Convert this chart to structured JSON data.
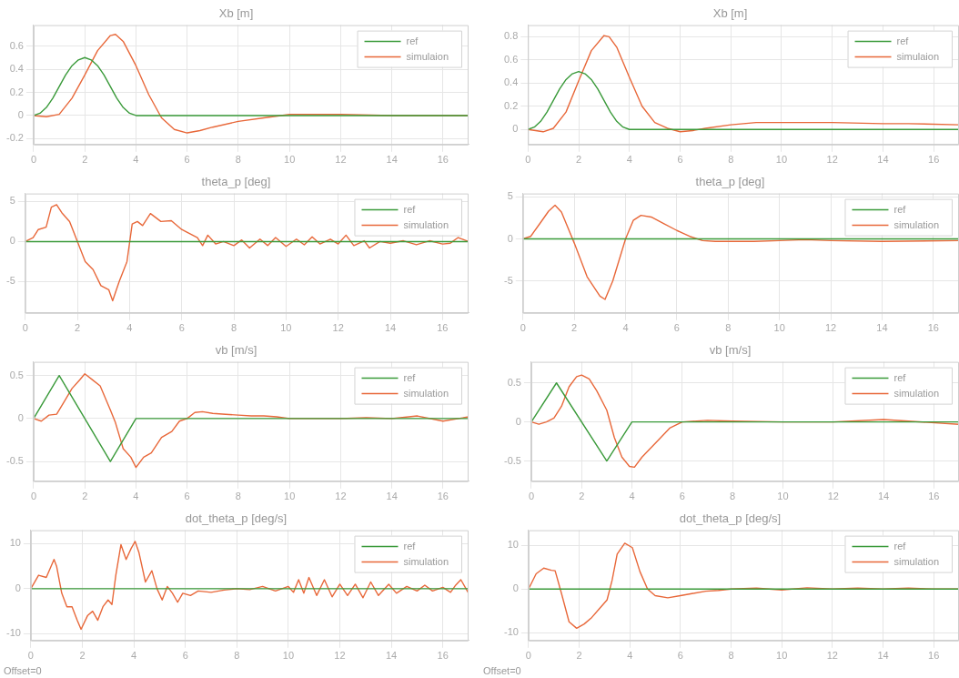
{
  "chart_data": [
    {
      "type": "line",
      "title": "Xb [m]",
      "xlim": [
        0,
        17
      ],
      "xticks": [
        0,
        2,
        4,
        6,
        8,
        10,
        12,
        14,
        16
      ],
      "ylim": [
        -0.25,
        0.78
      ],
      "yticks": [
        -0.2,
        0,
        0.2,
        0.4,
        0.6
      ],
      "grid": true,
      "legend": "top right",
      "series": [
        {
          "name": "ref",
          "color": "#3a9a3a",
          "x": [
            0,
            0.25,
            0.5,
            0.75,
            1,
            1.25,
            1.5,
            1.75,
            2,
            2.25,
            2.5,
            2.75,
            3,
            3.25,
            3.5,
            3.75,
            4,
            17
          ],
          "values": [
            0,
            0.02,
            0.07,
            0.15,
            0.25,
            0.35,
            0.43,
            0.48,
            0.5,
            0.48,
            0.43,
            0.35,
            0.25,
            0.15,
            0.07,
            0.02,
            0,
            0
          ]
        },
        {
          "name": "simulaion",
          "color": "#e8683a",
          "x": [
            0,
            0.5,
            1,
            1.5,
            2,
            2.5,
            3,
            3.2,
            3.5,
            4,
            4.5,
            5,
            5.5,
            6,
            6.5,
            7,
            8,
            9,
            10,
            12,
            14,
            17
          ],
          "values": [
            0,
            -0.01,
            0.01,
            0.15,
            0.35,
            0.56,
            0.69,
            0.7,
            0.64,
            0.43,
            0.18,
            -0.02,
            -0.12,
            -0.15,
            -0.13,
            -0.1,
            -0.05,
            -0.02,
            0.01,
            0.01,
            0,
            0
          ]
        }
      ]
    },
    {
      "type": "line",
      "title": "Xb [m]",
      "xlim": [
        0,
        17
      ],
      "xticks": [
        0,
        2,
        4,
        6,
        8,
        10,
        12,
        14,
        16
      ],
      "ylim": [
        -0.13,
        0.9
      ],
      "yticks": [
        0,
        0.2,
        0.4,
        0.6,
        0.8
      ],
      "grid": true,
      "legend": "top right",
      "series": [
        {
          "name": "ref",
          "color": "#3a9a3a",
          "x": [
            0,
            0.25,
            0.5,
            0.75,
            1,
            1.25,
            1.5,
            1.75,
            2,
            2.25,
            2.5,
            2.75,
            3,
            3.25,
            3.5,
            3.75,
            4,
            17
          ],
          "values": [
            0,
            0.02,
            0.07,
            0.15,
            0.25,
            0.35,
            0.43,
            0.48,
            0.5,
            0.48,
            0.43,
            0.35,
            0.25,
            0.15,
            0.07,
            0.02,
            0,
            0
          ]
        },
        {
          "name": "simulaion",
          "color": "#e8683a",
          "x": [
            0,
            0.6,
            1,
            1.5,
            2,
            2.5,
            3,
            3.2,
            3.5,
            4,
            4.5,
            5,
            5.5,
            6,
            6.5,
            7,
            8,
            9,
            10,
            12,
            14,
            15,
            17
          ],
          "values": [
            0,
            -0.02,
            0.01,
            0.15,
            0.42,
            0.68,
            0.81,
            0.8,
            0.71,
            0.45,
            0.2,
            0.06,
            0.01,
            -0.02,
            -0.01,
            0.01,
            0.04,
            0.06,
            0.06,
            0.06,
            0.05,
            0.05,
            0.04
          ]
        }
      ]
    },
    {
      "type": "line",
      "title": "theta_p [deg]",
      "xlim": [
        0,
        17
      ],
      "xticks": [
        0,
        2,
        4,
        6,
        8,
        10,
        12,
        14,
        16
      ],
      "ylim": [
        -8.9,
        6
      ],
      "yticks": [
        -5,
        0,
        5
      ],
      "grid": true,
      "legend": "top right",
      "series": [
        {
          "name": "ref",
          "color": "#3a9a3a",
          "x": [
            0,
            17
          ],
          "values": [
            0,
            0
          ]
        },
        {
          "name": "simulation",
          "color": "#e8683a",
          "x": [
            0,
            0.3,
            0.5,
            0.8,
            1,
            1.2,
            1.4,
            1.7,
            2,
            2.3,
            2.6,
            2.9,
            3.2,
            3.35,
            3.6,
            3.9,
            4.1,
            4.3,
            4.5,
            4.8,
            5.2,
            5.6,
            6,
            6.3,
            6.6,
            6.8,
            7,
            7.3,
            7.6,
            8,
            8.3,
            8.6,
            9,
            9.3,
            9.6,
            10,
            10.4,
            10.7,
            11,
            11.3,
            11.7,
            12,
            12.3,
            12.6,
            13,
            13.2,
            13.6,
            14,
            14.5,
            15,
            15.5,
            16,
            16.3,
            16.6,
            17
          ],
          "values": [
            0,
            0.5,
            1.5,
            1.8,
            4.3,
            4.6,
            3.6,
            2.5,
            0,
            -2.5,
            -3.5,
            -5.5,
            -6,
            -7.4,
            -5,
            -2.5,
            2.2,
            2.5,
            2,
            3.5,
            2.5,
            2.6,
            1.5,
            1,
            0.5,
            -0.5,
            0.8,
            -0.3,
            0,
            -0.5,
            0.2,
            -0.8,
            0.3,
            -0.5,
            0.5,
            -0.6,
            0.3,
            -0.4,
            0.6,
            -0.3,
            0.3,
            -0.3,
            0.8,
            -0.5,
            0.1,
            -0.8,
            0,
            -0.2,
            0.1,
            -0.4,
            0.1,
            -0.3,
            -0.2,
            0.5,
            0
          ]
        }
      ]
    },
    {
      "type": "line",
      "title": "theta_p [deg]",
      "xlim": [
        0,
        17
      ],
      "xticks": [
        0,
        2,
        4,
        6,
        8,
        10,
        12,
        14,
        16
      ],
      "ylim": [
        -8.8,
        5.4
      ],
      "yticks": [
        -5,
        0,
        5
      ],
      "grid": true,
      "legend": "top right",
      "series": [
        {
          "name": "ref",
          "color": "#3a9a3a",
          "x": [
            0,
            17
          ],
          "values": [
            0,
            0
          ]
        },
        {
          "name": "simulation",
          "color": "#e8683a",
          "x": [
            0,
            0.3,
            0.7,
            1,
            1.25,
            1.5,
            2,
            2.5,
            3,
            3.2,
            3.5,
            4,
            4.3,
            4.6,
            5,
            5.5,
            6,
            6.5,
            7,
            7.5,
            8,
            9,
            10,
            11,
            12,
            14,
            17
          ],
          "values": [
            0,
            0.3,
            2,
            3.3,
            4,
            3.2,
            -0.5,
            -4.5,
            -6.8,
            -7.2,
            -5,
            0,
            2.2,
            2.8,
            2.6,
            1.8,
            1,
            0.3,
            -0.2,
            -0.3,
            -0.3,
            -0.3,
            -0.2,
            -0.1,
            -0.2,
            -0.3,
            -0.2
          ]
        }
      ]
    },
    {
      "type": "line",
      "title": "vb [m/s]",
      "xlim": [
        0,
        17
      ],
      "xticks": [
        0,
        2,
        4,
        6,
        8,
        10,
        12,
        14,
        16
      ],
      "ylim": [
        -0.73,
        0.66
      ],
      "yticks": [
        -0.5,
        0,
        0.5
      ],
      "grid": true,
      "legend": "top right",
      "series": [
        {
          "name": "ref",
          "color": "#3a9a3a",
          "x": [
            0,
            1,
            3,
            4,
            17
          ],
          "values": [
            0,
            0.5,
            -0.5,
            0,
            0
          ]
        },
        {
          "name": "simulation",
          "color": "#e8683a",
          "x": [
            0,
            0.3,
            0.6,
            0.9,
            1.2,
            1.5,
            1.8,
            2,
            2.3,
            2.6,
            3,
            3.2,
            3.5,
            3.8,
            4,
            4.3,
            4.6,
            5,
            5.4,
            5.7,
            6,
            6.3,
            6.6,
            7,
            7.5,
            8,
            8.5,
            9,
            9.5,
            10,
            10.5,
            11,
            12,
            13,
            14,
            15,
            16,
            17
          ],
          "values": [
            0,
            -0.03,
            0.04,
            0.05,
            0.2,
            0.35,
            0.45,
            0.52,
            0.45,
            0.38,
            0.1,
            -0.05,
            -0.35,
            -0.45,
            -0.57,
            -0.45,
            -0.4,
            -0.22,
            -0.15,
            -0.03,
            0,
            0.07,
            0.08,
            0.06,
            0.05,
            0.04,
            0.03,
            0.03,
            0.02,
            0,
            0,
            0,
            0,
            0.01,
            0,
            0.03,
            -0.03,
            0.02
          ]
        }
      ]
    },
    {
      "type": "line",
      "title": "vb [m/s]",
      "xlim": [
        0,
        17
      ],
      "xticks": [
        0,
        2,
        4,
        6,
        8,
        10,
        12,
        14,
        16
      ],
      "ylim": [
        -0.76,
        0.77
      ],
      "yticks": [
        -0.5,
        0,
        0.5
      ],
      "grid": true,
      "legend": "top right",
      "series": [
        {
          "name": "ref",
          "color": "#3a9a3a",
          "x": [
            0,
            1,
            3,
            4,
            17
          ],
          "values": [
            0,
            0.5,
            -0.5,
            0,
            0
          ]
        },
        {
          "name": "simulation",
          "color": "#e8683a",
          "x": [
            0,
            0.3,
            0.6,
            0.9,
            1.2,
            1.5,
            1.8,
            2,
            2.3,
            2.6,
            3,
            3.3,
            3.6,
            3.9,
            4.1,
            4.4,
            5,
            5.5,
            6,
            7,
            8,
            10,
            12,
            14,
            17
          ],
          "values": [
            0,
            -0.03,
            0,
            0.05,
            0.2,
            0.45,
            0.58,
            0.6,
            0.55,
            0.4,
            0.15,
            -0.2,
            -0.45,
            -0.57,
            -0.58,
            -0.45,
            -0.25,
            -0.08,
            0,
            0.02,
            0.01,
            0,
            0,
            0.03,
            -0.03
          ]
        }
      ]
    },
    {
      "type": "line",
      "title": "dot_theta_p [deg/s]",
      "xlim": [
        0,
        17
      ],
      "xticks": [
        0,
        2,
        4,
        6,
        8,
        10,
        12,
        14,
        16
      ],
      "ylim": [
        -11.5,
        13
      ],
      "yticks": [
        -10,
        0,
        10
      ],
      "grid": true,
      "legend": "top right",
      "annotations": [
        "Offset=0"
      ],
      "series": [
        {
          "name": "ref",
          "color": "#3a9a3a",
          "x": [
            0,
            17
          ],
          "values": [
            0,
            0
          ]
        },
        {
          "name": "simulation",
          "color": "#e8683a",
          "x": [
            0,
            0.3,
            0.6,
            0.9,
            1,
            1.2,
            1.4,
            1.6,
            1.8,
            1.95,
            2.2,
            2.4,
            2.6,
            2.8,
            3,
            3.15,
            3.3,
            3.5,
            3.7,
            3.9,
            4.05,
            4.2,
            4.45,
            4.7,
            4.9,
            5.1,
            5.3,
            5.5,
            5.7,
            5.9,
            6.2,
            6.5,
            7,
            7.5,
            8,
            8.5,
            9,
            9.5,
            10,
            10.2,
            10.4,
            10.6,
            10.8,
            11.1,
            11.4,
            11.7,
            12,
            12.3,
            12.6,
            12.9,
            13.2,
            13.5,
            13.9,
            14.2,
            14.6,
            15,
            15.3,
            15.6,
            16,
            16.3,
            16.5,
            16.7,
            17
          ],
          "values": [
            0,
            3,
            2.5,
            6.5,
            5,
            -1,
            -4,
            -4,
            -7,
            -9,
            -6,
            -5,
            -7,
            -4,
            -2.5,
            -3.5,
            3,
            9.8,
            6.5,
            9,
            10.5,
            8,
            1.5,
            4,
            0,
            -2.5,
            0.5,
            -1,
            -3,
            -1,
            -1.5,
            -0.5,
            -0.8,
            -0.3,
            0,
            -0.2,
            0.5,
            -0.5,
            0.5,
            -0.8,
            2,
            -1,
            2.5,
            -1.5,
            2,
            -1.8,
            1,
            -1.5,
            1,
            -2,
            1.5,
            -1.5,
            1,
            -1,
            0.5,
            -0.5,
            0.8,
            -0.5,
            0.3,
            -0.8,
            0.8,
            2,
            -1
          ]
        }
      ]
    },
    {
      "type": "line",
      "title": "dot_theta_p [deg/s]",
      "xlim": [
        0,
        17
      ],
      "xticks": [
        0,
        2,
        4,
        6,
        8,
        10,
        12,
        14,
        16
      ],
      "ylim": [
        -11.8,
        13.5
      ],
      "yticks": [
        -10,
        0,
        10
      ],
      "grid": true,
      "legend": "top right",
      "annotations": [
        "Offset=0"
      ],
      "series": [
        {
          "name": "ref",
          "color": "#3a9a3a",
          "x": [
            0,
            17
          ],
          "values": [
            0,
            0
          ]
        },
        {
          "name": "simulation",
          "color": "#e8683a",
          "x": [
            0,
            0.3,
            0.6,
            0.9,
            1.05,
            1.3,
            1.6,
            1.9,
            2.2,
            2.5,
            2.8,
            3.1,
            3.3,
            3.5,
            3.8,
            4.1,
            4.4,
            4.7,
            5,
            5.5,
            6,
            6.5,
            7,
            7.5,
            8,
            9,
            10,
            11,
            12,
            13,
            14,
            15,
            16,
            17
          ],
          "values": [
            0,
            3.5,
            4.8,
            4.3,
            4.2,
            -1,
            -7.5,
            -9,
            -8,
            -6.5,
            -4.5,
            -2.5,
            2,
            8,
            10.5,
            9.5,
            4,
            0,
            -1.5,
            -2,
            -1.5,
            -1,
            -0.5,
            -0.3,
            0,
            0.2,
            -0.2,
            0.3,
            0,
            0.2,
            0,
            0.2,
            0,
            0
          ]
        }
      ]
    }
  ]
}
